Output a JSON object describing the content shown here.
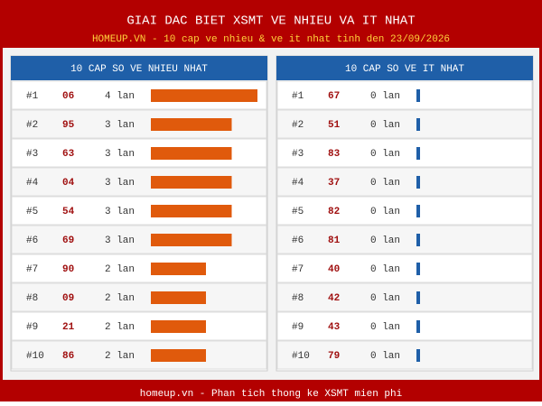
{
  "header": {
    "title": "GIAI DAC BIET XSMT VE NHIEU VA IT NHAT",
    "subtitle": "HOMEUP.VN - 10 cap ve nhieu & ve it nhat tinh den 23/09/2026"
  },
  "panels": [
    {
      "title": "10 CAP SO VE NHIEU NHAT",
      "color": "#e05a0c",
      "rows": [
        {
          "rank": "#1",
          "number": "06",
          "count": 4,
          "count_label": "4 lan"
        },
        {
          "rank": "#2",
          "number": "95",
          "count": 3,
          "count_label": "3 lan"
        },
        {
          "rank": "#3",
          "number": "63",
          "count": 3,
          "count_label": "3 lan"
        },
        {
          "rank": "#4",
          "number": "04",
          "count": 3,
          "count_label": "3 lan"
        },
        {
          "rank": "#5",
          "number": "54",
          "count": 3,
          "count_label": "3 lan"
        },
        {
          "rank": "#6",
          "number": "69",
          "count": 3,
          "count_label": "3 lan"
        },
        {
          "rank": "#7",
          "number": "90",
          "count": 2,
          "count_label": "2 lan"
        },
        {
          "rank": "#8",
          "number": "09",
          "count": 2,
          "count_label": "2 lan"
        },
        {
          "rank": "#9",
          "number": "21",
          "count": 2,
          "count_label": "2 lan"
        },
        {
          "rank": "#10",
          "number": "86",
          "count": 2,
          "count_label": "2 lan"
        }
      ]
    },
    {
      "title": "10 CAP SO VE IT NHAT",
      "color": "#1f5fa8",
      "rows": [
        {
          "rank": "#1",
          "number": "67",
          "count": 0,
          "count_label": "0 lan"
        },
        {
          "rank": "#2",
          "number": "51",
          "count": 0,
          "count_label": "0 lan"
        },
        {
          "rank": "#3",
          "number": "83",
          "count": 0,
          "count_label": "0 lan"
        },
        {
          "rank": "#4",
          "number": "37",
          "count": 0,
          "count_label": "0 lan"
        },
        {
          "rank": "#5",
          "number": "82",
          "count": 0,
          "count_label": "0 lan"
        },
        {
          "rank": "#6",
          "number": "81",
          "count": 0,
          "count_label": "0 lan"
        },
        {
          "rank": "#7",
          "number": "40",
          "count": 0,
          "count_label": "0 lan"
        },
        {
          "rank": "#8",
          "number": "42",
          "count": 0,
          "count_label": "0 lan"
        },
        {
          "rank": "#9",
          "number": "43",
          "count": 0,
          "count_label": "0 lan"
        },
        {
          "rank": "#10",
          "number": "79",
          "count": 0,
          "count_label": "0 lan"
        }
      ]
    }
  ],
  "footer": "homeup.vn - Phan tich thong ke XSMT mien phi"
}
